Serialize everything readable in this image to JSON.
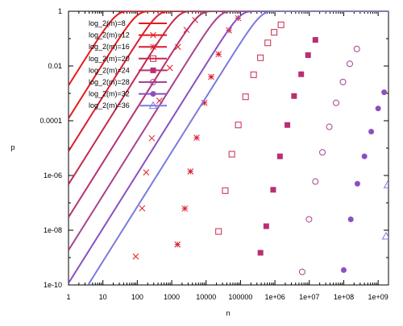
{
  "chart_data": {
    "type": "line",
    "xlabel": "n",
    "ylabel": "p",
    "xscale": "log",
    "yscale": "log",
    "xlim": [
      1,
      2000000000
    ],
    "ylim": [
      1e-10,
      1
    ],
    "x_ticks": [
      {
        "value": 1,
        "label": "1"
      },
      {
        "value": 10,
        "label": "10"
      },
      {
        "value": 100,
        "label": "100"
      },
      {
        "value": 1000,
        "label": "1000"
      },
      {
        "value": 10000,
        "label": "10000"
      },
      {
        "value": 100000,
        "label": "100000"
      },
      {
        "value": 1000000,
        "label": "1e+06"
      },
      {
        "value": 10000000,
        "label": "1e+07"
      },
      {
        "value": 100000000,
        "label": "1e+08"
      },
      {
        "value": 1000000000,
        "label": "1e+09"
      }
    ],
    "y_ticks": [
      {
        "value": 1e-10,
        "label": "1e-10"
      },
      {
        "value": 1e-08,
        "label": "1e-08"
      },
      {
        "value": 1e-06,
        "label": "1e-06"
      },
      {
        "value": 0.0001,
        "label": "0.0001"
      },
      {
        "value": 0.01,
        "label": "0.01"
      },
      {
        "value": 1,
        "label": "1"
      }
    ],
    "legend_position": "top-left",
    "grid": false,
    "series": [
      {
        "name": "log_2(m)=8",
        "log2m": 8,
        "color": "#e41a1c",
        "marker": "none",
        "x": [],
        "y": []
      },
      {
        "name": "log_2(m)=12",
        "log2m": 12,
        "color": "#e31a1c",
        "marker": "x",
        "x": [
          90,
          138,
          181,
          264,
          440,
          880,
          1520,
          2700,
          4800
        ],
        "y": [
          1.1e-09,
          6.3e-08,
          1.3e-06,
          2.3e-05,
          0.00054,
          0.0085,
          0.05,
          0.21,
          0.48
        ]
      },
      {
        "name": "log_2(m)=16",
        "log2m": 16,
        "color": "#dc1c30",
        "marker": "star",
        "x": [
          1470,
          2400,
          3500,
          5300,
          8900,
          14000,
          23000,
          46000,
          85000
        ],
        "y": [
          3e-09,
          6.2e-08,
          1.4e-06,
          2.4e-05,
          0.00045,
          0.004,
          0.027,
          0.2,
          0.56
        ]
      },
      {
        "name": "log_2(m)=20",
        "log2m": 20,
        "color": "#c42a4e",
        "marker": "open-square",
        "x": [
          23000,
          36000,
          56000,
          86000,
          140000,
          240000,
          380000,
          620000,
          950000,
          1500000
        ],
        "y": [
          9e-09,
          2.8e-07,
          6e-06,
          7e-05,
          0.00075,
          0.0048,
          0.02,
          0.07,
          0.17,
          0.32
        ]
      },
      {
        "name": "log_2(m)=24",
        "log2m": 24,
        "color": "#b83072",
        "marker": "filled-square",
        "x": [
          380000,
          560000,
          890000,
          1400000,
          2300000,
          3600000,
          5800000,
          9200000,
          15000000
        ],
        "y": [
          1.5e-09,
          1.4e-08,
          3e-07,
          5e-06,
          7e-05,
          0.0008,
          0.005,
          0.025,
          0.09
        ]
      },
      {
        "name": "log_2(m)=28",
        "log2m": 28,
        "color": "#a8438e",
        "marker": "open-circle",
        "x": [
          6200000,
          9800000,
          15000000,
          24000000,
          38000000,
          60000000,
          95000000,
          150000000,
          240000000
        ],
        "y": [
          3e-10,
          2.5e-08,
          6e-07,
          7e-06,
          6e-05,
          0.00045,
          0.0026,
          0.012,
          0.042
        ]
      },
      {
        "name": "log_2(m)=32",
        "log2m": 32,
        "color": "#8b4fc2",
        "marker": "filled-circle",
        "x": [
          100000000,
          160000000,
          250000000,
          400000000,
          630000000,
          1000000000,
          1500000000
        ],
        "y": [
          3.5e-10,
          2.5e-08,
          5e-07,
          5e-06,
          4e-05,
          0.00028,
          0.0011
        ]
      },
      {
        "name": "log_2(m)=36",
        "log2m": 36,
        "color": "#7b7ae0",
        "marker": "open-triangle",
        "x": [
          1700000000,
          1900000000
        ],
        "y": [
          6e-09,
          4.5e-07
        ]
      }
    ]
  }
}
